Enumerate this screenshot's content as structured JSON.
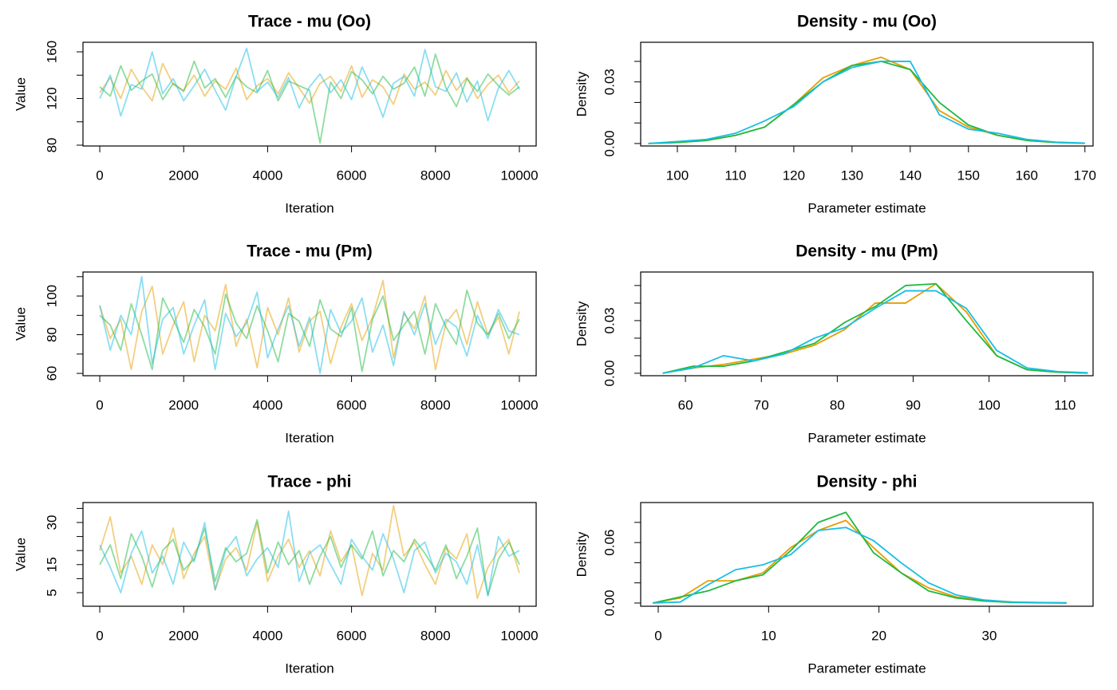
{
  "chart_data": [
    {
      "type": "line",
      "title": "Trace - mu (Oo)",
      "xlabel": "Iteration",
      "ylabel": "Value",
      "x": [
        0,
        250,
        500,
        750,
        1000,
        1250,
        1500,
        1750,
        2000,
        2250,
        2500,
        2750,
        3000,
        3250,
        3500,
        3750,
        4000,
        4250,
        4500,
        4750,
        5000,
        5250,
        5500,
        5750,
        6000,
        6250,
        6500,
        6750,
        7000,
        7250,
        7500,
        7750,
        8000,
        8250,
        8500,
        8750,
        9000,
        9250,
        9500,
        9750,
        10000
      ],
      "opacity": 0.5,
      "series": [
        {
          "color": "#E69F00",
          "values": [
            125,
            138,
            120,
            145,
            130,
            118,
            150,
            132,
            127,
            140,
            122,
            135,
            128,
            146,
            119,
            131,
            137,
            124,
            142,
            129,
            116,
            133,
            139,
            126,
            148,
            121,
            136,
            130,
            115,
            141,
            128,
            134,
            123,
            144,
            127,
            138,
            120,
            132,
            140,
            125,
            135
          ]
        },
        {
          "color": "#1DB93F",
          "values": [
            130,
            122,
            148,
            127,
            135,
            141,
            119,
            133,
            126,
            152,
            129,
            137,
            121,
            139,
            130,
            125,
            144,
            118,
            135,
            131,
            127,
            82,
            134,
            120,
            143,
            136,
            124,
            139,
            128,
            133,
            147,
            122,
            158,
            129,
            113,
            137,
            126,
            141,
            131,
            123,
            130
          ]
        },
        {
          "color": "#17BEE6",
          "values": [
            120,
            140,
            105,
            132,
            128,
            160,
            124,
            137,
            118,
            131,
            145,
            127,
            110,
            139,
            163,
            126,
            134,
            121,
            138,
            112,
            130,
            141,
            125,
            136,
            119,
            147,
            128,
            104,
            133,
            139,
            122,
            162,
            130,
            126,
            142,
            117,
            135,
            101,
            129,
            144,
            128
          ]
        }
      ],
      "xlim": [
        -400,
        10400
      ],
      "ylim": [
        79.3,
        168.2
      ],
      "xticks": [
        0,
        2000,
        4000,
        6000,
        8000,
        10000
      ],
      "yticks": [
        80,
        120,
        160
      ],
      "yticks_minor": [
        100,
        140
      ]
    },
    {
      "type": "line",
      "title": "Density - mu (Oo)",
      "xlabel": "Parameter estimate",
      "ylabel": "Density",
      "x": [
        95,
        100,
        105,
        110,
        115,
        120,
        125,
        130,
        135,
        140,
        145,
        150,
        155,
        160,
        165,
        170
      ],
      "opacity": 1,
      "series": [
        {
          "color": "#E69F00",
          "values": [
            0,
            0.0005,
            0.0015,
            0.004,
            0.008,
            0.019,
            0.032,
            0.038,
            0.042,
            0.036,
            0.016,
            0.008,
            0.004,
            0.0015,
            0.0005,
            0.0001
          ]
        },
        {
          "color": "#1DB93F",
          "values": [
            0,
            0.0005,
            0.0015,
            0.004,
            0.008,
            0.019,
            0.03,
            0.038,
            0.04,
            0.036,
            0.02,
            0.009,
            0.004,
            0.0015,
            0.0005,
            0.0001
          ]
        },
        {
          "color": "#17BEE6",
          "values": [
            0,
            0.001,
            0.002,
            0.005,
            0.011,
            0.018,
            0.03,
            0.037,
            0.04,
            0.04,
            0.014,
            0.007,
            0.005,
            0.002,
            0.0007,
            0.0002
          ]
        }
      ],
      "xlim": [
        93.7,
        171.4
      ],
      "ylim": [
        -0.0012,
        0.0493
      ],
      "xticks": [
        100,
        110,
        120,
        130,
        140,
        150,
        160,
        170
      ],
      "yticks": [
        {
          "value": 0,
          "label": "0.00"
        },
        {
          "value": 0.03,
          "label": "0.03"
        }
      ],
      "yticks_minor": [
        0.01,
        0.02,
        0.04
      ]
    },
    {
      "type": "line",
      "title": "Trace - mu (Pm)",
      "xlabel": "Iteration",
      "ylabel": "Value",
      "x": [
        0,
        250,
        500,
        750,
        1000,
        1250,
        1500,
        1750,
        2000,
        2250,
        2500,
        2750,
        3000,
        3250,
        3500,
        3750,
        4000,
        4250,
        4500,
        4750,
        5000,
        5250,
        5500,
        5750,
        6000,
        6250,
        6500,
        6750,
        7000,
        7250,
        7500,
        7750,
        8000,
        8250,
        8500,
        8750,
        9000,
        9250,
        9500,
        9750,
        10000
      ],
      "opacity": 0.5,
      "series": [
        {
          "color": "#E69F00",
          "values": [
            95,
            78,
            88,
            62,
            92,
            105,
            70,
            85,
            97,
            66,
            90,
            82,
            106,
            74,
            88,
            63,
            94,
            80,
            99,
            71,
            87,
            92,
            65,
            84,
            96,
            77,
            89,
            108,
            68,
            91,
            83,
            100,
            62,
            86,
            93,
            75,
            97,
            80,
            89,
            70,
            92
          ]
        },
        {
          "color": "#1DB93F",
          "values": [
            90,
            85,
            72,
            96,
            80,
            62,
            99,
            88,
            76,
            93,
            84,
            70,
            101,
            86,
            78,
            95,
            82,
            66,
            91,
            87,
            74,
            98,
            83,
            79,
            94,
            61,
            88,
            100,
            77,
            85,
            92,
            70,
            96,
            84,
            75,
            103,
            86,
            80,
            91,
            78,
            88
          ]
        },
        {
          "color": "#17BEE6",
          "values": [
            95,
            72,
            90,
            80,
            110,
            65,
            88,
            94,
            70,
            85,
            98,
            62,
            91,
            79,
            86,
            102,
            68,
            83,
            95,
            74,
            89,
            60,
            93,
            81,
            87,
            99,
            71,
            85,
            64,
            92,
            80,
            96,
            75,
            88,
            84,
            69,
            90,
            78,
            93,
            82,
            80
          ]
        }
      ],
      "xlim": [
        -400,
        10400
      ],
      "ylim": [
        58.8,
        112.4
      ],
      "xticks": [
        0,
        2000,
        4000,
        6000,
        8000,
        10000
      ],
      "yticks": [
        60,
        80,
        100
      ],
      "yticks_minor": [
        70,
        90,
        110
      ]
    },
    {
      "type": "line",
      "title": "Density - mu (Pm)",
      "xlabel": "Parameter estimate",
      "ylabel": "Density",
      "x": [
        57,
        61,
        65,
        69,
        73,
        77,
        81,
        85,
        89,
        93,
        97,
        101,
        105,
        109,
        113
      ],
      "opacity": 1,
      "series": [
        {
          "color": "#E69F00",
          "values": [
            0,
            0.003,
            0.005,
            0.008,
            0.011,
            0.016,
            0.025,
            0.04,
            0.04,
            0.051,
            0.035,
            0.01,
            0.002,
            0.0006,
            0.0001
          ]
        },
        {
          "color": "#1DB93F",
          "values": [
            0,
            0.004,
            0.004,
            0.007,
            0.012,
            0.017,
            0.029,
            0.038,
            0.05,
            0.051,
            0.03,
            0.01,
            0.002,
            0.0006,
            0.0001
          ]
        },
        {
          "color": "#17BEE6",
          "values": [
            0,
            0.003,
            0.01,
            0.007,
            0.011,
            0.02,
            0.026,
            0.037,
            0.047,
            0.047,
            0.037,
            0.013,
            0.003,
            0.001,
            0.0003
          ]
        }
      ],
      "xlim": [
        54.1,
        113.7
      ],
      "ylim": [
        -0.0014,
        0.0577
      ],
      "xticks": [
        60,
        70,
        80,
        90,
        100,
        110
      ],
      "yticks": [
        {
          "value": 0,
          "label": "0.00"
        },
        {
          "value": 0.03,
          "label": "0.03"
        }
      ],
      "yticks_minor": [
        0.01,
        0.02,
        0.04,
        0.05
      ]
    },
    {
      "type": "line",
      "title": "Trace - phi",
      "xlabel": "Iteration",
      "ylabel": "Value",
      "x": [
        0,
        250,
        500,
        750,
        1000,
        1250,
        1500,
        1750,
        2000,
        2250,
        2500,
        2750,
        3000,
        3250,
        3500,
        3750,
        4000,
        4250,
        4500,
        4750,
        5000,
        5250,
        5500,
        5750,
        6000,
        6250,
        6500,
        6750,
        7000,
        7250,
        7500,
        7750,
        8000,
        8250,
        8500,
        8750,
        9000,
        9250,
        9500,
        9750,
        10000
      ],
      "opacity": 0.5,
      "series": [
        {
          "color": "#E69F00",
          "values": [
            20,
            32,
            12,
            18,
            8,
            22,
            15,
            28,
            10,
            19,
            25,
            6,
            17,
            21,
            13,
            30,
            9,
            18,
            24,
            14,
            20,
            11,
            27,
            16,
            22,
            4,
            19,
            13,
            36,
            18,
            23,
            15,
            8,
            21,
            17,
            26,
            3,
            14,
            20,
            24,
            12
          ]
        },
        {
          "color": "#1DB93F",
          "values": [
            15,
            22,
            10,
            26,
            18,
            7,
            20,
            24,
            13,
            17,
            28,
            9,
            21,
            16,
            19,
            31,
            12,
            23,
            15,
            20,
            8,
            18,
            25,
            14,
            22,
            17,
            27,
            11,
            20,
            16,
            24,
            19,
            13,
            22,
            10,
            18,
            28,
            4,
            17,
            23,
            15
          ]
        },
        {
          "color": "#17BEE6",
          "values": [
            22,
            14,
            5,
            19,
            27,
            12,
            18,
            8,
            23,
            16,
            30,
            6,
            20,
            25,
            11,
            17,
            21,
            14,
            34,
            9,
            19,
            22,
            15,
            8,
            24,
            18,
            13,
            26,
            17,
            5,
            20,
            23,
            12,
            19,
            16,
            8,
            22,
            4,
            25,
            18,
            20
          ]
        }
      ],
      "xlim": [
        -400,
        10400
      ],
      "ylim": [
        0.17,
        37.1
      ],
      "xticks": [
        0,
        2000,
        4000,
        6000,
        8000,
        10000
      ],
      "yticks": [
        5,
        15,
        30
      ],
      "yticks_minor": [
        10,
        20,
        25,
        35
      ]
    },
    {
      "type": "line",
      "title": "Density - phi",
      "xlabel": "Parameter estimate",
      "ylabel": "Density",
      "x": [
        -0.5,
        2,
        4.5,
        7,
        9.5,
        12,
        14.5,
        17,
        19.5,
        22,
        24.5,
        27,
        29.5,
        32,
        34.5,
        37
      ],
      "opacity": 1,
      "series": [
        {
          "color": "#E69F00",
          "values": [
            0,
            0.005,
            0.022,
            0.022,
            0.03,
            0.055,
            0.072,
            0.082,
            0.055,
            0.03,
            0.015,
            0.006,
            0.003,
            0.001,
            0.0005,
            0.0002
          ]
        },
        {
          "color": "#1DB93F",
          "values": [
            0,
            0.006,
            0.012,
            0.022,
            0.028,
            0.052,
            0.08,
            0.09,
            0.05,
            0.03,
            0.012,
            0.005,
            0.002,
            0.0006,
            0.0002,
            0
          ]
        },
        {
          "color": "#17BEE6",
          "values": [
            0,
            0.001,
            0.018,
            0.033,
            0.038,
            0.048,
            0.072,
            0.075,
            0.062,
            0.04,
            0.02,
            0.008,
            0.003,
            0.001,
            0.0004,
            0.0001
          ]
        }
      ],
      "xlim": [
        -1.59,
        39.4
      ],
      "ylim": [
        -0.0032,
        0.0997
      ],
      "xticks": [
        0,
        10,
        20,
        30
      ],
      "yticks": [
        {
          "value": 0,
          "label": "0.00"
        },
        {
          "value": 0.06,
          "label": "0.06"
        }
      ],
      "yticks_minor": [
        0.02,
        0.04,
        0.08
      ]
    }
  ]
}
